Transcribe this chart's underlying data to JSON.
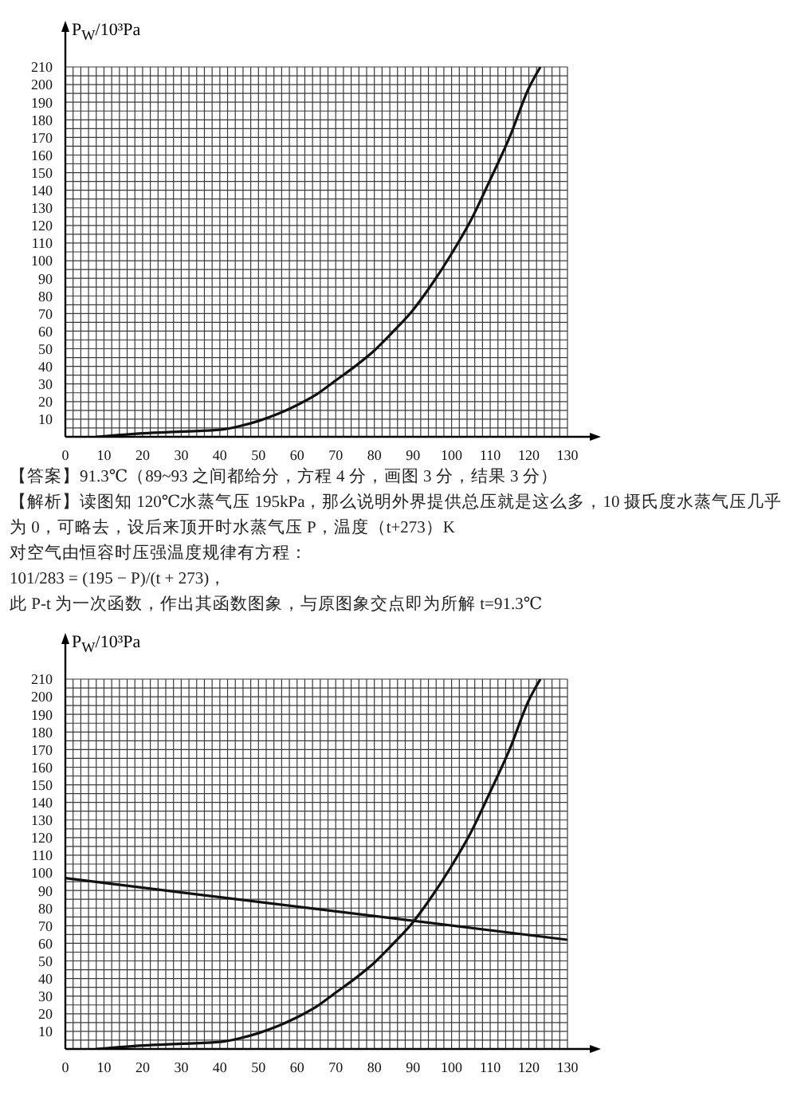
{
  "chart_data": [
    {
      "type": "line",
      "ylabel": "P$_{W}$/10³Pa",
      "series": [
        {
          "color": "#111111",
          "x": [
            8,
            20,
            30,
            40,
            45,
            50,
            55,
            60,
            65,
            70,
            75,
            80,
            85,
            90,
            95,
            100,
            105,
            110,
            115,
            120,
            123
          ],
          "values": [
            0,
            2,
            3,
            4,
            6,
            9,
            13,
            18,
            24,
            32,
            40,
            49,
            60,
            72,
            87,
            104,
            123,
            146,
            170,
            198,
            210
          ]
        }
      ],
      "xlim": [
        0,
        130
      ],
      "ylim": [
        0,
        210
      ],
      "xticks": [
        0,
        {
          "value": 2,
          "label": null
        },
        {
          "value": 4,
          "label": null
        },
        {
          "value": 6,
          "label": null
        },
        {
          "value": 8,
          "label": null
        },
        10,
        {
          "value": 12,
          "label": null
        },
        {
          "value": 14,
          "label": null
        },
        {
          "value": 16,
          "label": null
        },
        {
          "value": 18,
          "label": null
        },
        20,
        {
          "value": 22,
          "label": null
        },
        {
          "value": 24,
          "label": null
        },
        {
          "value": 26,
          "label": null
        },
        {
          "value": 28,
          "label": null
        },
        30,
        {
          "value": 32,
          "label": null
        },
        {
          "value": 34,
          "label": null
        },
        {
          "value": 36,
          "label": null
        },
        {
          "value": 38,
          "label": null
        },
        40,
        {
          "value": 42,
          "label": null
        },
        {
          "value": 44,
          "label": null
        },
        {
          "value": 46,
          "label": null
        },
        {
          "value": 48,
          "label": null
        },
        50,
        {
          "value": 52,
          "label": null
        },
        {
          "value": 54,
          "label": null
        },
        {
          "value": 56,
          "label": null
        },
        {
          "value": 58,
          "label": null
        },
        60,
        {
          "value": 62,
          "label": null
        },
        {
          "value": 64,
          "label": null
        },
        {
          "value": 66,
          "label": null
        },
        {
          "value": 68,
          "label": null
        },
        70,
        {
          "value": 72,
          "label": null
        },
        {
          "value": 74,
          "label": null
        },
        {
          "value": 76,
          "label": null
        },
        {
          "value": 78,
          "label": null
        },
        80,
        {
          "value": 82,
          "label": null
        },
        {
          "value": 84,
          "label": null
        },
        {
          "value": 86,
          "label": null
        },
        {
          "value": 88,
          "label": null
        },
        90,
        {
          "value": 92,
          "label": null
        },
        {
          "value": 94,
          "label": null
        },
        {
          "value": 96,
          "label": null
        },
        {
          "value": 98,
          "label": null
        },
        100,
        {
          "value": 102,
          "label": null
        },
        {
          "value": 104,
          "label": null
        },
        {
          "value": 106,
          "label": null
        },
        {
          "value": 108,
          "label": null
        },
        110,
        {
          "value": 112,
          "label": null
        },
        {
          "value": 114,
          "label": null
        },
        {
          "value": 116,
          "label": null
        },
        {
          "value": 118,
          "label": null
        },
        120,
        {
          "value": 122,
          "label": null
        },
        {
          "value": 124,
          "label": null
        },
        {
          "value": 126,
          "label": null
        },
        {
          "value": 128,
          "label": null
        },
        130
      ],
      "yticks": [
        {
          "value": 0,
          "label": null
        },
        {
          "value": 5,
          "label": null
        },
        10,
        {
          "value": 15,
          "label": null
        },
        20,
        {
          "value": 25,
          "label": null
        },
        30,
        {
          "value": 35,
          "label": null
        },
        40,
        {
          "value": 45,
          "label": null
        },
        50,
        {
          "value": 55,
          "label": null
        },
        60,
        {
          "value": 65,
          "label": null
        },
        70,
        {
          "value": 75,
          "label": null
        },
        80,
        {
          "value": 85,
          "label": null
        },
        90,
        {
          "value": 95,
          "label": null
        },
        100,
        {
          "value": 105,
          "label": null
        },
        110,
        {
          "value": 115,
          "label": null
        },
        120,
        {
          "value": 125,
          "label": null
        },
        130,
        {
          "value": 135,
          "label": null
        },
        140,
        {
          "value": 145,
          "label": null
        },
        150,
        {
          "value": 155,
          "label": null
        },
        160,
        {
          "value": 165,
          "label": null
        },
        170,
        {
          "value": 175,
          "label": null
        },
        180,
        {
          "value": 185,
          "label": null
        },
        190,
        {
          "value": 195,
          "label": null
        },
        200,
        {
          "value": 205,
          "label": null
        },
        210
      ],
      "grid": true,
      "annotations": [
        "【答案】91.3℃（89~93 之间都给分，方程 4 分，画图 3 分，结果 3 分）",
        "【解析】读图知 120℃水蒸气压 195kPa，那么说明外界提供总压就是这么多，10 摄氏度水蒸气压几乎为 0，可略去，设后来顶开时水蒸气压 P，温度（t+273）K",
        "对空气由恒容时压强温度规律有方程：",
        "101/283 = (195 − P)/(t + 273)，",
        "此 P-t 为一次函数，作出其函数图象，与原图象交点即为所解 t=91.3℃"
      ]
    },
    {
      "type": "line",
      "ylabel": "P$_{W}$/10³Pa",
      "series": [
        {
          "color": "#111111",
          "x": [
            8,
            20,
            30,
            40,
            45,
            50,
            55,
            60,
            65,
            70,
            75,
            80,
            85,
            90,
            95,
            100,
            105,
            110,
            115,
            120,
            123
          ],
          "values": [
            0,
            2,
            3,
            4,
            6,
            9,
            13,
            18,
            24,
            32,
            40,
            49,
            60,
            72,
            87,
            104,
            123,
            146,
            170,
            198,
            210
          ]
        },
        {
          "color": "#111111",
          "x": [
            0,
            130
          ],
          "values": [
            97,
            62
          ]
        }
      ],
      "xlim": [
        0,
        130
      ],
      "ylim": [
        0,
        210
      ],
      "xticks": [
        0,
        {
          "value": 2,
          "label": null
        },
        {
          "value": 4,
          "label": null
        },
        {
          "value": 6,
          "label": null
        },
        {
          "value": 8,
          "label": null
        },
        10,
        {
          "value": 12,
          "label": null
        },
        {
          "value": 14,
          "label": null
        },
        {
          "value": 16,
          "label": null
        },
        {
          "value": 18,
          "label": null
        },
        20,
        {
          "value": 22,
          "label": null
        },
        {
          "value": 24,
          "label": null
        },
        {
          "value": 26,
          "label": null
        },
        {
          "value": 28,
          "label": null
        },
        30,
        {
          "value": 32,
          "label": null
        },
        {
          "value": 34,
          "label": null
        },
        {
          "value": 36,
          "label": null
        },
        {
          "value": 38,
          "label": null
        },
        40,
        {
          "value": 42,
          "label": null
        },
        {
          "value": 44,
          "label": null
        },
        {
          "value": 46,
          "label": null
        },
        {
          "value": 48,
          "label": null
        },
        50,
        {
          "value": 52,
          "label": null
        },
        {
          "value": 54,
          "label": null
        },
        {
          "value": 56,
          "label": null
        },
        {
          "value": 58,
          "label": null
        },
        60,
        {
          "value": 62,
          "label": null
        },
        {
          "value": 64,
          "label": null
        },
        {
          "value": 66,
          "label": null
        },
        {
          "value": 68,
          "label": null
        },
        70,
        {
          "value": 72,
          "label": null
        },
        {
          "value": 74,
          "label": null
        },
        {
          "value": 76,
          "label": null
        },
        {
          "value": 78,
          "label": null
        },
        80,
        {
          "value": 82,
          "label": null
        },
        {
          "value": 84,
          "label": null
        },
        {
          "value": 86,
          "label": null
        },
        {
          "value": 88,
          "label": null
        },
        90,
        {
          "value": 92,
          "label": null
        },
        {
          "value": 94,
          "label": null
        },
        {
          "value": 96,
          "label": null
        },
        {
          "value": 98,
          "label": null
        },
        100,
        {
          "value": 102,
          "label": null
        },
        {
          "value": 104,
          "label": null
        },
        {
          "value": 106,
          "label": null
        },
        {
          "value": 108,
          "label": null
        },
        110,
        {
          "value": 112,
          "label": null
        },
        {
          "value": 114,
          "label": null
        },
        {
          "value": 116,
          "label": null
        },
        {
          "value": 118,
          "label": null
        },
        120,
        {
          "value": 122,
          "label": null
        },
        {
          "value": 124,
          "label": null
        },
        {
          "value": 126,
          "label": null
        },
        {
          "value": 128,
          "label": null
        },
        130
      ],
      "yticks": [
        {
          "value": 0,
          "label": null
        },
        {
          "value": 5,
          "label": null
        },
        10,
        {
          "value": 15,
          "label": null
        },
        20,
        {
          "value": 25,
          "label": null
        },
        30,
        {
          "value": 35,
          "label": null
        },
        40,
        {
          "value": 45,
          "label": null
        },
        50,
        {
          "value": 55,
          "label": null
        },
        60,
        {
          "value": 65,
          "label": null
        },
        70,
        {
          "value": 75,
          "label": null
        },
        80,
        {
          "value": 85,
          "label": null
        },
        90,
        {
          "value": 95,
          "label": null
        },
        100,
        {
          "value": 105,
          "label": null
        },
        110,
        {
          "value": 115,
          "label": null
        },
        120,
        {
          "value": 125,
          "label": null
        },
        130,
        {
          "value": 135,
          "label": null
        },
        140,
        {
          "value": 145,
          "label": null
        },
        150,
        {
          "value": 155,
          "label": null
        },
        160,
        {
          "value": 165,
          "label": null
        },
        170,
        {
          "value": 175,
          "label": null
        },
        180,
        {
          "value": 185,
          "label": null
        },
        190,
        {
          "value": 195,
          "label": null
        },
        200,
        {
          "value": 205,
          "label": null
        },
        210
      ],
      "grid": true
    }
  ]
}
